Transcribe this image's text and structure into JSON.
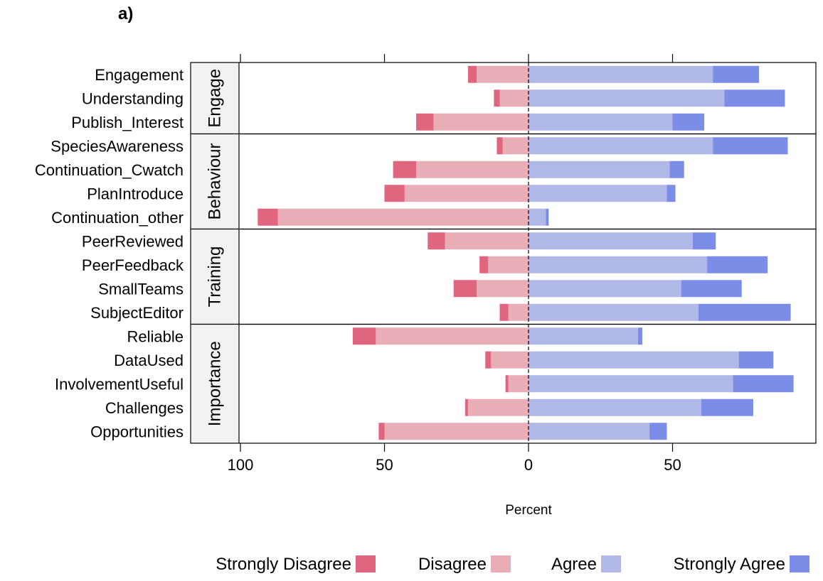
{
  "panel_label": "a)",
  "colors": {
    "strongly_disagree": "#e0667f",
    "disagree": "#e8adb7",
    "agree": "#b0b8e8",
    "strongly_agree": "#7b8de6",
    "strip": "#f2f2f2",
    "frame": "#000000"
  },
  "chart_data": {
    "type": "bar",
    "orientation": "horizontal",
    "style": "diverging stacked (Likert)",
    "xlabel": "Percent",
    "xlim": [
      -100,
      90
    ],
    "x_ticks": [
      -100,
      -50,
      0,
      50
    ],
    "x_tick_labels": [
      "100",
      "50",
      "0",
      "50"
    ],
    "legend": {
      "position": "bottom",
      "entries": [
        "Strongly Disagree",
        "Disagree",
        "Agree",
        "Strongly Agree"
      ]
    },
    "groups": [
      {
        "name": "Engage",
        "items": [
          {
            "label": "Engagement",
            "strongly_disagree": 3,
            "disagree": 18,
            "agree": 64,
            "strongly_agree": 16
          },
          {
            "label": "Understanding",
            "strongly_disagree": 2,
            "disagree": 10,
            "agree": 68,
            "strongly_agree": 21
          },
          {
            "label": "Publish_Interest",
            "strongly_disagree": 6,
            "disagree": 33,
            "agree": 50,
            "strongly_agree": 11
          }
        ]
      },
      {
        "name": "Behaviour",
        "items": [
          {
            "label": "SpeciesAwareness",
            "strongly_disagree": 2,
            "disagree": 9,
            "agree": 64,
            "strongly_agree": 26
          },
          {
            "label": "Continuation_Cwatch",
            "strongly_disagree": 8,
            "disagree": 39,
            "agree": 49,
            "strongly_agree": 5
          },
          {
            "label": "PlanIntroduce",
            "strongly_disagree": 7,
            "disagree": 43,
            "agree": 48,
            "strongly_agree": 3
          },
          {
            "label": "Continuation_other",
            "strongly_disagree": 7,
            "disagree": 87,
            "agree": 6,
            "strongly_agree": 1
          }
        ]
      },
      {
        "name": "Training",
        "items": [
          {
            "label": "PeerReviewed",
            "strongly_disagree": 6,
            "disagree": 29,
            "agree": 57,
            "strongly_agree": 8
          },
          {
            "label": "PeerFeedback",
            "strongly_disagree": 3,
            "disagree": 14,
            "agree": 62,
            "strongly_agree": 21
          },
          {
            "label": "SmallTeams",
            "strongly_disagree": 8,
            "disagree": 18,
            "agree": 53,
            "strongly_agree": 21
          },
          {
            "label": "SubjectEditor",
            "strongly_disagree": 3,
            "disagree": 7,
            "agree": 59,
            "strongly_agree": 32
          }
        ]
      },
      {
        "name": "Importance",
        "items": [
          {
            "label": "Reliable",
            "strongly_disagree": 8,
            "disagree": 53,
            "agree": 38,
            "strongly_agree": 1.5
          },
          {
            "label": "DataUsed",
            "strongly_disagree": 2,
            "disagree": 13,
            "agree": 73,
            "strongly_agree": 12
          },
          {
            "label": "InvolvementUseful",
            "strongly_disagree": 1,
            "disagree": 7,
            "agree": 71,
            "strongly_agree": 21
          },
          {
            "label": "Challenges",
            "strongly_disagree": 1,
            "disagree": 21,
            "agree": 60,
            "strongly_agree": 18
          },
          {
            "label": "Opportunities",
            "strongly_disagree": 2,
            "disagree": 50,
            "agree": 42,
            "strongly_agree": 6
          }
        ]
      }
    ]
  }
}
